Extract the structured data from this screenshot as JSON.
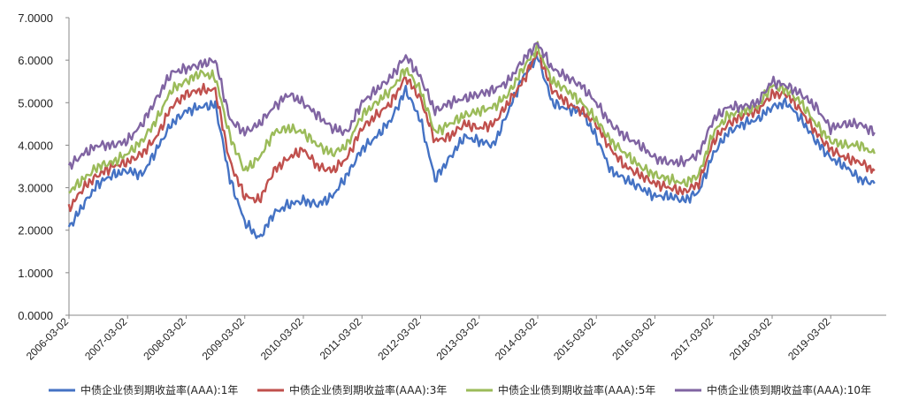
{
  "chart_data": {
    "type": "line",
    "title": "",
    "xlabel": "",
    "ylabel": "",
    "ylim": [
      0,
      7
    ],
    "yticks": [
      "0.0000",
      "1.0000",
      "2.0000",
      "3.0000",
      "4.0000",
      "5.0000",
      "6.0000",
      "7.0000"
    ],
    "xticks": [
      "2006-03-02",
      "2007-03-02",
      "2008-03-02",
      "2009-03-02",
      "2010-03-02",
      "2011-03-02",
      "2012-03-02",
      "2013-03-02",
      "2014-03-02",
      "2015-03-02",
      "2016-03-02",
      "2017-03-02",
      "2018-03-02",
      "2019-03-02"
    ],
    "grid": false,
    "legend_position": "bottom",
    "x": [
      "2006-03",
      "2006-06",
      "2006-09",
      "2006-12",
      "2007-03",
      "2007-06",
      "2007-09",
      "2007-12",
      "2008-03",
      "2008-06",
      "2008-09",
      "2008-12",
      "2009-03",
      "2009-06",
      "2009-09",
      "2009-12",
      "2010-03",
      "2010-06",
      "2010-09",
      "2010-12",
      "2011-03",
      "2011-06",
      "2011-09",
      "2011-12",
      "2012-03",
      "2012-06",
      "2012-09",
      "2012-12",
      "2013-03",
      "2013-06",
      "2013-09",
      "2013-12",
      "2014-03",
      "2014-06",
      "2014-09",
      "2014-12",
      "2015-03",
      "2015-06",
      "2015-09",
      "2015-12",
      "2016-03",
      "2016-06",
      "2016-09",
      "2016-12",
      "2017-03",
      "2017-06",
      "2017-09",
      "2017-12",
      "2018-03",
      "2018-06",
      "2018-09",
      "2018-12",
      "2019-03",
      "2019-06",
      "2019-09",
      "2019-12"
    ],
    "series": [
      {
        "name": "中债企业债到期收益率(AAA):1年",
        "color": "#4472c4",
        "values": [
          2.05,
          2.6,
          3.1,
          3.3,
          3.4,
          3.3,
          3.9,
          4.5,
          4.8,
          4.9,
          4.95,
          3.2,
          2.2,
          1.8,
          2.4,
          2.6,
          2.7,
          2.6,
          2.8,
          3.3,
          3.9,
          4.2,
          4.6,
          5.3,
          4.6,
          3.2,
          3.7,
          4.2,
          4.1,
          4.0,
          4.8,
          5.6,
          6.1,
          5.0,
          4.85,
          4.8,
          4.2,
          3.4,
          3.2,
          3.0,
          2.8,
          2.8,
          2.7,
          2.9,
          3.8,
          4.3,
          4.5,
          4.6,
          4.9,
          5.0,
          4.6,
          4.1,
          3.7,
          3.5,
          3.2,
          3.1
        ]
      },
      {
        "name": "中债企业债到期收益率(AAA):3年",
        "color": "#c0504d",
        "values": [
          2.5,
          3.0,
          3.3,
          3.5,
          3.6,
          3.8,
          4.2,
          4.9,
          5.2,
          5.3,
          5.3,
          3.6,
          2.8,
          2.7,
          3.4,
          3.7,
          3.9,
          3.5,
          3.4,
          3.7,
          4.4,
          4.7,
          5.0,
          5.6,
          5.1,
          4.1,
          4.2,
          4.5,
          4.4,
          4.5,
          5.0,
          5.5,
          6.2,
          5.3,
          5.0,
          4.8,
          4.5,
          3.9,
          3.5,
          3.3,
          3.1,
          3.0,
          2.9,
          3.1,
          4.1,
          4.5,
          4.7,
          4.8,
          5.2,
          5.2,
          4.8,
          4.3,
          3.9,
          3.7,
          3.6,
          3.4
        ]
      },
      {
        "name": "中债企业债到期收益率(AAA):5年",
        "color": "#9bbb59",
        "values": [
          2.9,
          3.2,
          3.5,
          3.6,
          3.8,
          4.1,
          4.6,
          5.3,
          5.5,
          5.7,
          5.6,
          4.2,
          3.4,
          3.7,
          4.3,
          4.4,
          4.3,
          4.0,
          3.8,
          4.0,
          4.7,
          5.0,
          5.3,
          5.8,
          5.3,
          4.3,
          4.5,
          4.7,
          4.8,
          4.9,
          5.2,
          5.8,
          6.3,
          5.5,
          5.3,
          5.0,
          4.6,
          4.1,
          3.8,
          3.5,
          3.3,
          3.2,
          3.1,
          3.3,
          4.3,
          4.7,
          4.8,
          4.9,
          5.4,
          5.3,
          5.0,
          4.5,
          4.1,
          4.0,
          4.0,
          3.8
        ]
      },
      {
        "name": "中债企业债到期收益率(AAA):10年",
        "color": "#8064a2",
        "values": [
          3.5,
          3.8,
          4.0,
          4.0,
          4.1,
          4.5,
          5.1,
          5.7,
          5.8,
          5.9,
          6.0,
          4.6,
          4.3,
          4.5,
          4.9,
          5.2,
          5.0,
          4.7,
          4.4,
          4.3,
          5.0,
          5.3,
          5.6,
          6.1,
          5.6,
          4.8,
          5.0,
          5.1,
          5.2,
          5.3,
          5.5,
          6.0,
          6.4,
          5.8,
          5.6,
          5.4,
          5.0,
          4.5,
          4.2,
          4.0,
          3.7,
          3.6,
          3.6,
          3.8,
          4.6,
          4.9,
          4.9,
          5.0,
          5.5,
          5.4,
          5.2,
          4.9,
          4.4,
          4.5,
          4.5,
          4.3
        ]
      }
    ]
  }
}
